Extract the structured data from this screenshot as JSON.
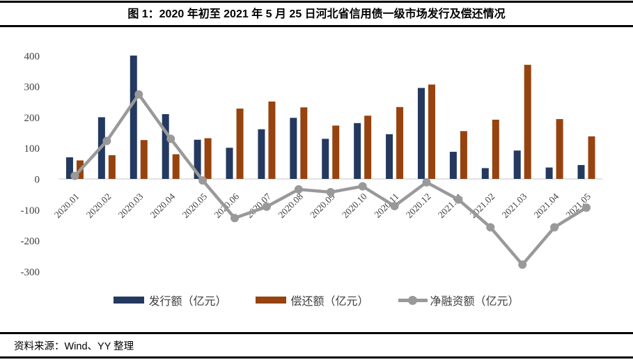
{
  "title": "图 1：2020 年初至 2021 年 5 月 25 日河北省信用债一级市场发行及偿还情况",
  "source": "资料来源：Wind、YY 整理",
  "colors": {
    "issuance_bar": "#24395F",
    "repayment_bar": "#96430F",
    "net_line": "#999999",
    "zero_axis": "#D9D9D9",
    "axis_text": "#3F3F3F",
    "rule": "#000000"
  },
  "chart_data": {
    "type": "bar+line",
    "title": "图 1：2020 年初至 2021 年 5 月 25 日河北省信用债一级市场发行及偿还情况",
    "categories": [
      "2020.01",
      "2020.02",
      "2020.03",
      "2020.04",
      "2020.05",
      "2020.06",
      "2020.07",
      "2020.08",
      "2020.09",
      "2020.10",
      "2020.11",
      "2020.12",
      "2021.01",
      "2021.02",
      "2021.03",
      "2021.04",
      "2021.05"
    ],
    "series": [
      {
        "name": "发行额（亿元）",
        "kind": "bar",
        "color": "#24395F",
        "values": [
          70,
          200,
          400,
          210,
          127,
          101,
          161,
          198,
          130,
          181,
          145,
          295,
          88,
          35,
          92,
          37,
          45
        ]
      },
      {
        "name": "偿还额（亿元）",
        "kind": "bar",
        "color": "#96430F",
        "values": [
          60,
          77,
          126,
          80,
          132,
          228,
          251,
          232,
          173,
          205,
          233,
          306,
          155,
          192,
          370,
          194,
          138
        ]
      },
      {
        "name": "净融资额（亿元）",
        "kind": "line",
        "color": "#999999",
        "values": [
          10,
          123,
          274,
          130,
          -5,
          -127,
          -90,
          -34,
          -43,
          -24,
          -88,
          -11,
          -67,
          -157,
          -278,
          -157,
          -93
        ]
      }
    ],
    "xlabel": "",
    "ylabel": "",
    "ylim": [
      -300,
      400
    ],
    "yticks": [
      400,
      300,
      200,
      100,
      0,
      -100,
      -200,
      -300
    ],
    "grid": false,
    "legend_position": "bottom",
    "axis_text_color": "#3F3F3F",
    "zero_axis_color": "#D9D9D9"
  }
}
